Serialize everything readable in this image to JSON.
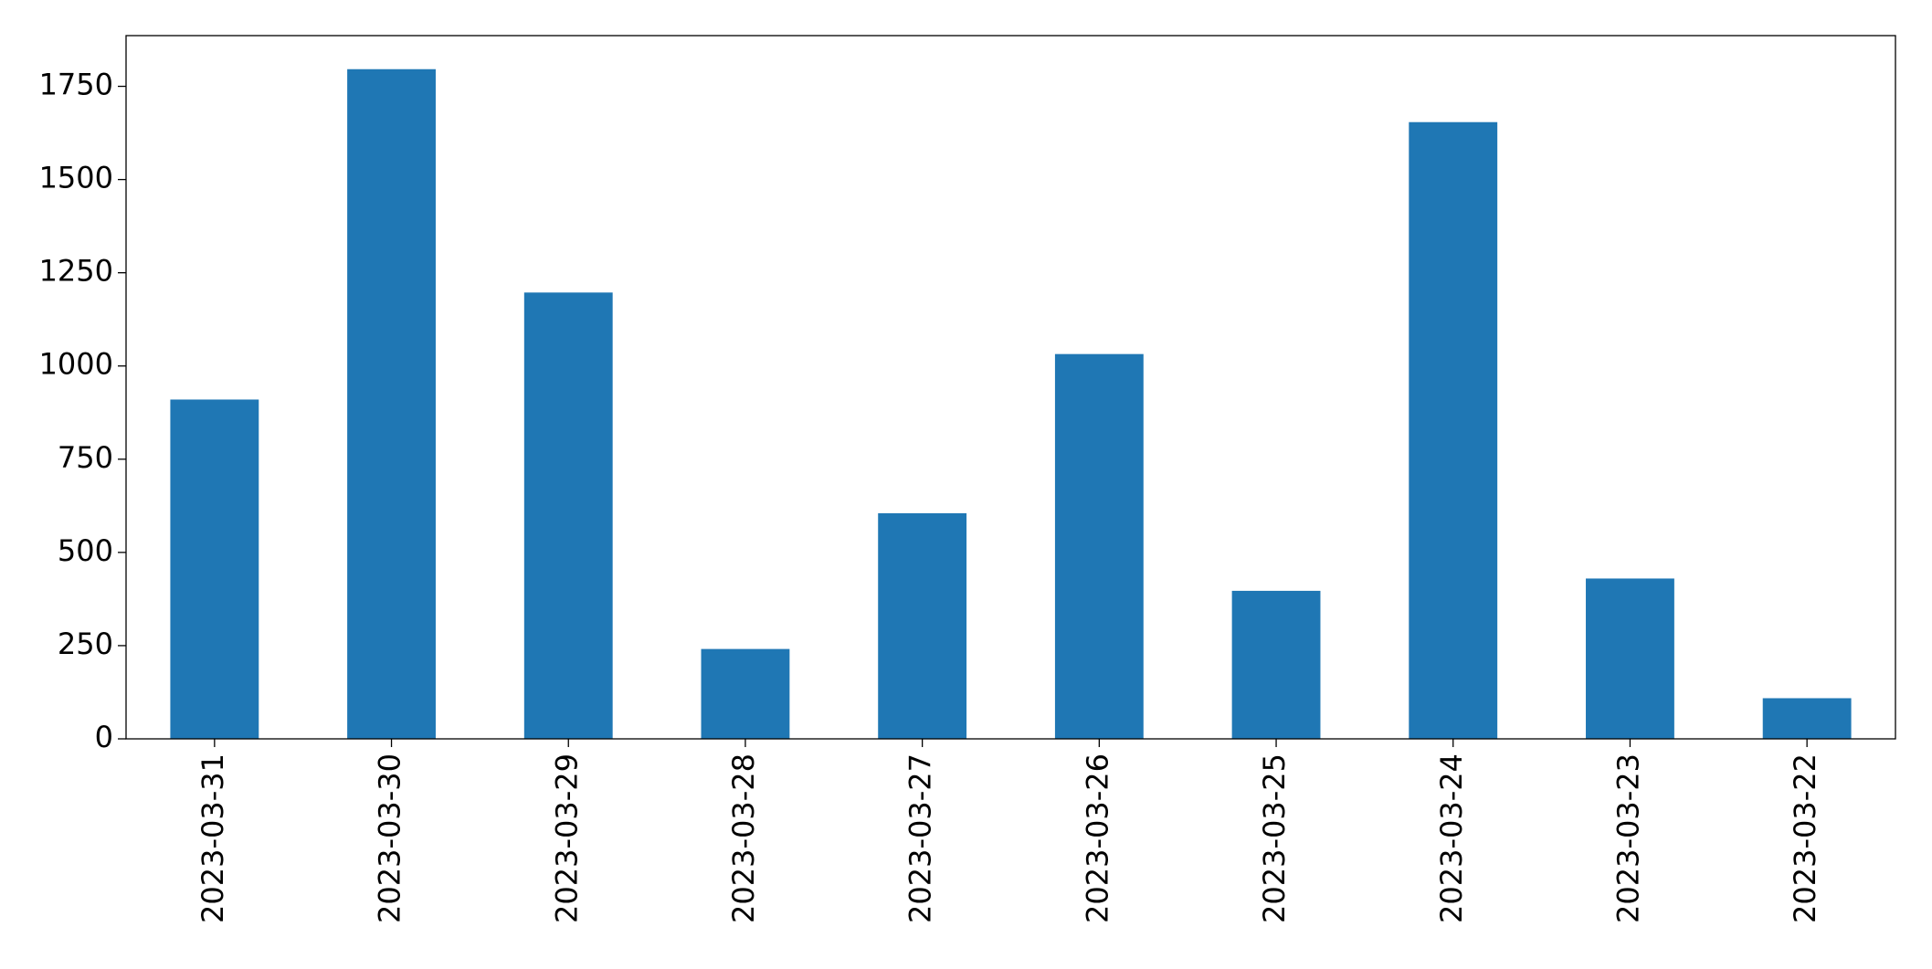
{
  "chart_data": {
    "type": "bar",
    "categories": [
      "2023-03-31",
      "2023-03-30",
      "2023-03-29",
      "2023-03-28",
      "2023-03-27",
      "2023-03-26",
      "2023-03-25",
      "2023-03-24",
      "2023-03-23",
      "2023-03-22"
    ],
    "values": [
      910,
      1796,
      1197,
      241,
      605,
      1032,
      397,
      1654,
      430,
      109
    ],
    "color": "#1f77b4",
    "ylim": [
      0,
      1886
    ],
    "yticks": [
      0,
      250,
      500,
      750,
      1000,
      1250,
      1500,
      1750
    ],
    "grid": false
  }
}
